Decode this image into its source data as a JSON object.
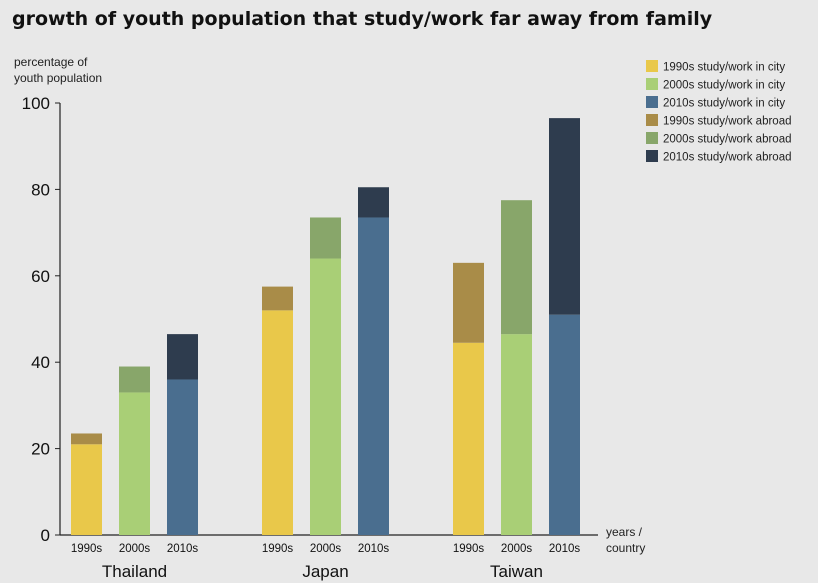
{
  "chart_data": {
    "type": "bar",
    "stacked": true,
    "title": "growth of youth population that study/work far away from family",
    "ylabel_lines": [
      "percentage of",
      "youth population"
    ],
    "xlabel_lines": [
      "years /",
      "country"
    ],
    "ylim": [
      0,
      100
    ],
    "yticks": [
      0,
      20,
      40,
      60,
      80,
      100
    ],
    "groups": [
      {
        "country": "Thailand",
        "bars": [
          {
            "decade": "1990s",
            "city": 21,
            "abroad": 2.5
          },
          {
            "decade": "2000s",
            "city": 33,
            "abroad": 6
          },
          {
            "decade": "2010s",
            "city": 36,
            "abroad": 10.5
          }
        ]
      },
      {
        "country": "Japan",
        "bars": [
          {
            "decade": "1990s",
            "city": 52,
            "abroad": 5.5
          },
          {
            "decade": "2000s",
            "city": 64,
            "abroad": 9.5
          },
          {
            "decade": "2010s",
            "city": 73.5,
            "abroad": 7
          }
        ]
      },
      {
        "country": "Taiwan",
        "bars": [
          {
            "decade": "1990s",
            "city": 44.5,
            "abroad": 18.5
          },
          {
            "decade": "2000s",
            "city": 46.5,
            "abroad": 31
          },
          {
            "decade": "2010s",
            "city": 51,
            "abroad": 45.5
          }
        ]
      }
    ],
    "legend": [
      {
        "label": "1990s study/work in city",
        "color": "#e9c84a"
      },
      {
        "label": "2000s study/work in city",
        "color": "#a9cf76"
      },
      {
        "label": "2010s study/work in city",
        "color": "#4a6e8f"
      },
      {
        "label": "1990s study/work abroad",
        "color": "#a98c48"
      },
      {
        "label": "2000s study/work abroad",
        "color": "#88a66a"
      },
      {
        "label": "2010s study/work abroad",
        "color": "#2e3c4e"
      }
    ],
    "colors": {
      "1990s": {
        "city": "#e9c84a",
        "abroad": "#a98c48"
      },
      "2000s": {
        "city": "#a9cf76",
        "abroad": "#88a66a"
      },
      "2010s": {
        "city": "#4a6e8f",
        "abroad": "#2e3c4e"
      }
    }
  }
}
